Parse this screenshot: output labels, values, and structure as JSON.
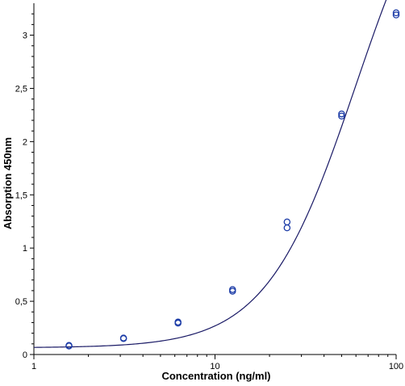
{
  "chart_data": {
    "type": "scatter",
    "xlabel": "Concentration (ng/ml)",
    "ylabel": "Absorption 450nm",
    "x_scale": "log",
    "xlim": [
      1,
      100
    ],
    "ylim": [
      0,
      3.2
    ],
    "x_ticks": [
      {
        "value": 1,
        "label": "1"
      },
      {
        "value": 10,
        "label": "10"
      },
      {
        "value": 100,
        "label": "100"
      }
    ],
    "y_ticks": [
      {
        "value": 0,
        "label": "0"
      },
      {
        "value": 0.5,
        "label": "0,5"
      },
      {
        "value": 1,
        "label": "1"
      },
      {
        "value": 1.5,
        "label": "1,5"
      },
      {
        "value": 2,
        "label": "2"
      },
      {
        "value": 2.5,
        "label": "2,5"
      },
      {
        "value": 3,
        "label": "3"
      }
    ],
    "grid": false,
    "points": [
      {
        "x": 1.5625,
        "y": 0.08
      },
      {
        "x": 1.5625,
        "y": 0.085
      },
      {
        "x": 3.125,
        "y": 0.15
      },
      {
        "x": 3.125,
        "y": 0.155
      },
      {
        "x": 6.25,
        "y": 0.295
      },
      {
        "x": 6.25,
        "y": 0.305
      },
      {
        "x": 12.5,
        "y": 0.595
      },
      {
        "x": 12.5,
        "y": 0.61
      },
      {
        "x": 25,
        "y": 1.19
      },
      {
        "x": 25,
        "y": 1.245
      },
      {
        "x": 50,
        "y": 2.24
      },
      {
        "x": 50,
        "y": 2.26
      },
      {
        "x": 100,
        "y": 3.19
      },
      {
        "x": 100,
        "y": 3.21
      }
    ],
    "fit_curve": {
      "type": "4PL",
      "a": 0.063,
      "b": 1.75,
      "c": 60,
      "d": 5.0
    },
    "colors": {
      "curve": "#1a1a66",
      "markers": "#1a3aa6",
      "axes": "#000000"
    }
  }
}
